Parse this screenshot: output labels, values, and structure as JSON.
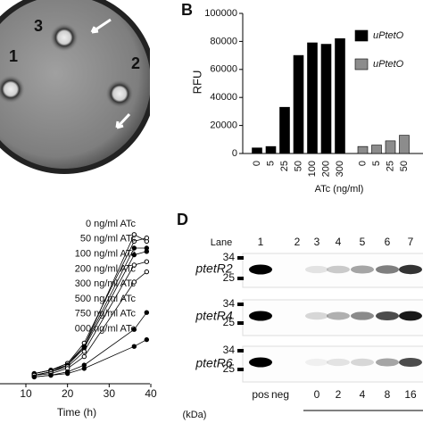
{
  "panel_labels": [
    "B",
    "D"
  ],
  "plate": {
    "labels": [
      "1",
      "2",
      "3"
    ]
  },
  "chart_data": [
    {
      "type": "bar",
      "ylabel": "RFU",
      "xlabel": "ATc (ng/ml)",
      "categories": [
        "0",
        "5",
        "25",
        "50",
        "100",
        "200",
        "300",
        "0",
        "5",
        "25",
        "50"
      ],
      "series": [
        {
          "name": "uPtetO",
          "color": "#000000",
          "values": [
            4000,
            5000,
            33000,
            70000,
            79000,
            78000,
            82000,
            null,
            null,
            null,
            null
          ]
        },
        {
          "name": "uPtetO",
          "color": "#8c8c8c",
          "values": [
            null,
            null,
            null,
            null,
            null,
            null,
            null,
            5000,
            6000,
            9000,
            13000
          ]
        }
      ],
      "ylim": [
        0,
        100000
      ],
      "yticks": [
        0,
        20000,
        40000,
        60000,
        80000,
        100000
      ]
    },
    {
      "type": "line",
      "xlabel": "Time (h)",
      "x": [
        12,
        16,
        20,
        24,
        36,
        39
      ],
      "xlim": [
        7,
        43
      ],
      "xticks": [
        10,
        20,
        30,
        40
      ],
      "ylim": [
        0,
        100
      ],
      "series": [
        {
          "name": "0 ng/ml ATc",
          "color": "#000000",
          "marker_fill": "#ffffff",
          "values": [
            6,
            8,
            12,
            22,
            88,
            84
          ]
        },
        {
          "name": "50 ng/ml ATc",
          "color": "#000000",
          "marker_fill": "#ffffff",
          "values": [
            6,
            8,
            12,
            24,
            84,
            86
          ]
        },
        {
          "name": "100 ng/ml ATc",
          "color": "#000000",
          "marker_fill": "#000000",
          "values": [
            6,
            8,
            11,
            22,
            80,
            80
          ]
        },
        {
          "name": "200 ng/ml ATc",
          "color": "#000000",
          "marker_fill": "#000000",
          "values": [
            5,
            7,
            11,
            21,
            76,
            78
          ]
        },
        {
          "name": "300 ng/ml ATc",
          "color": "#000000",
          "marker_fill": "#ffffff",
          "values": [
            5,
            7,
            10,
            19,
            70,
            72
          ]
        },
        {
          "name": "500 ng/ml ATc",
          "color": "#000000",
          "marker_fill": "#ffffff",
          "values": [
            5,
            6,
            9,
            16,
            60,
            66
          ]
        },
        {
          "name": "750 ng/ml ATc",
          "color": "#000000",
          "marker_fill": "#000000",
          "values": [
            4,
            5,
            7,
            11,
            32,
            42
          ]
        },
        {
          "name": "000 ng/ml ATc",
          "color": "#000000",
          "marker_fill": "#000000",
          "values": [
            4,
            5,
            6,
            9,
            22,
            26
          ]
        }
      ]
    }
  ],
  "gel": {
    "lane_title": "Lane",
    "lanes": [
      "1",
      "2",
      "3",
      "4",
      "5",
      "6",
      "7"
    ],
    "rows": [
      "ptetR2",
      "ptetR4",
      "ptetR6"
    ],
    "markers": [
      "34",
      "25"
    ],
    "unit": "(kDa)",
    "bottom_labels": [
      "pos",
      "neg",
      "0",
      "2",
      "4",
      "8",
      "16"
    ]
  }
}
